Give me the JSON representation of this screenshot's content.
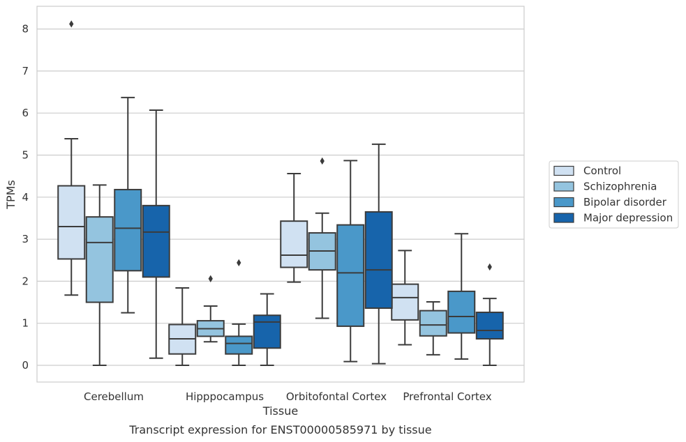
{
  "chart_data": {
    "type": "boxplot",
    "caption": "Transcript expression for ENST00000585971 by tissue",
    "xlabel": "Tissue",
    "ylabel": "TPMs",
    "ylim": [
      -0.4,
      8.55
    ],
    "yticks": [
      0,
      1,
      2,
      3,
      4,
      5,
      6,
      7,
      8
    ],
    "grid": true,
    "legend_position": "right",
    "categories": [
      "Cerebellum",
      "Hipppocampus",
      "Orbitofontal Cortex",
      "Prefrontal Cortex"
    ],
    "series": [
      {
        "name": "Control",
        "color": "#d0e1f2",
        "boxes": [
          {
            "whislo": 1.67,
            "q1": 2.53,
            "med": 3.3,
            "q3": 4.27,
            "whishi": 5.39,
            "fliers": [
              8.12
            ]
          },
          {
            "whislo": 0.0,
            "q1": 0.27,
            "med": 0.63,
            "q3": 0.97,
            "whishi": 1.84,
            "fliers": []
          },
          {
            "whislo": 1.98,
            "q1": 2.33,
            "med": 2.62,
            "q3": 3.43,
            "whishi": 4.56,
            "fliers": []
          },
          {
            "whislo": 0.49,
            "q1": 1.08,
            "med": 1.61,
            "q3": 1.93,
            "whishi": 2.73,
            "fliers": []
          }
        ]
      },
      {
        "name": "Schizophrenia",
        "color": "#94c4df",
        "boxes": [
          {
            "whislo": 0.0,
            "q1": 1.5,
            "med": 2.92,
            "q3": 3.53,
            "whishi": 4.29,
            "fliers": []
          },
          {
            "whislo": 0.56,
            "q1": 0.69,
            "med": 0.87,
            "q3": 1.06,
            "whishi": 1.41,
            "fliers": [
              2.06
            ]
          },
          {
            "whislo": 1.12,
            "q1": 2.27,
            "med": 2.72,
            "q3": 3.15,
            "whishi": 3.62,
            "fliers": [
              4.86
            ]
          },
          {
            "whislo": 0.25,
            "q1": 0.7,
            "med": 0.96,
            "q3": 1.3,
            "whishi": 1.51,
            "fliers": []
          }
        ]
      },
      {
        "name": "Bipolar disorder",
        "color": "#4a98c9",
        "boxes": [
          {
            "whislo": 1.25,
            "q1": 2.25,
            "med": 3.26,
            "q3": 4.18,
            "whishi": 6.37,
            "fliers": []
          },
          {
            "whislo": 0.0,
            "q1": 0.27,
            "med": 0.52,
            "q3": 0.69,
            "whishi": 0.98,
            "fliers": [
              2.44
            ]
          },
          {
            "whislo": 0.09,
            "q1": 0.93,
            "med": 2.2,
            "q3": 3.34,
            "whishi": 4.87,
            "fliers": []
          },
          {
            "whislo": 0.15,
            "q1": 0.77,
            "med": 1.16,
            "q3": 1.76,
            "whishi": 3.13,
            "fliers": []
          }
        ]
      },
      {
        "name": "Major depression",
        "color": "#1764ab",
        "boxes": [
          {
            "whislo": 0.17,
            "q1": 2.1,
            "med": 3.17,
            "q3": 3.8,
            "whishi": 6.07,
            "fliers": []
          },
          {
            "whislo": 0.0,
            "q1": 0.41,
            "med": 1.03,
            "q3": 1.19,
            "whishi": 1.7,
            "fliers": []
          },
          {
            "whislo": 0.04,
            "q1": 1.36,
            "med": 2.27,
            "q3": 3.65,
            "whishi": 5.26,
            "fliers": []
          },
          {
            "whislo": 0.0,
            "q1": 0.63,
            "med": 0.83,
            "q3": 1.26,
            "whishi": 1.59,
            "fliers": [
              2.34
            ]
          }
        ]
      }
    ]
  }
}
